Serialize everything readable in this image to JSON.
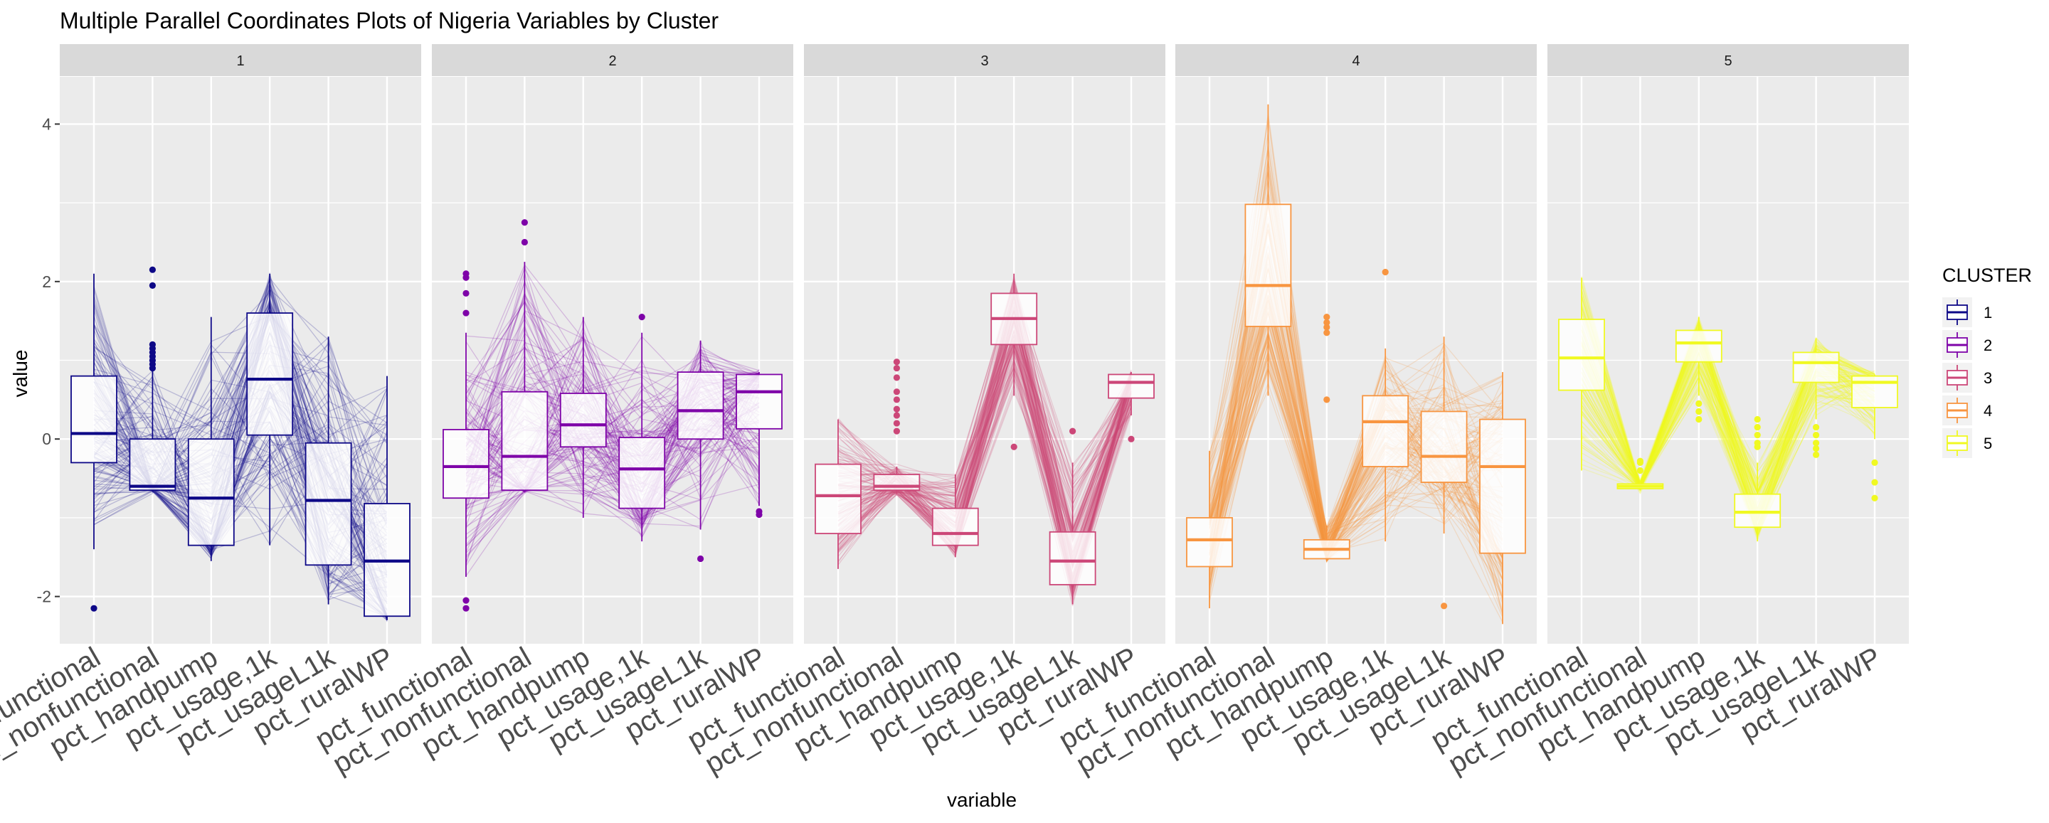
{
  "chart_data": {
    "type": "parallel_coordinates_boxplot",
    "title": "Multiple Parallel Coordinates Plots of Nigeria Variables by Cluster",
    "xlabel": "variable",
    "ylabel": "value",
    "ylim": [
      -2.6,
      4.6
    ],
    "y_ticks": [
      -2,
      0,
      2,
      4
    ],
    "variables": [
      "pct_functional",
      "pct_nonfunctional",
      "pct_handpump",
      "pct_usage,1k",
      "pct_usageL1k",
      "pct_ruralWP"
    ],
    "grid": true,
    "legend": {
      "title": "CLUSTER",
      "position": "right",
      "entries": [
        "1",
        "2",
        "3",
        "4",
        "5"
      ]
    },
    "colors": {
      "1": "#0d0887",
      "2": "#7e03a8",
      "3": "#cc4778",
      "4": "#f89540",
      "5": "#f0f921"
    },
    "panels": [
      {
        "cluster": "1",
        "boxes": [
          {
            "q1": -0.3,
            "median": 0.07,
            "q3": 0.8,
            "wlo": -1.4,
            "whi": 2.1
          },
          {
            "q1": -0.65,
            "median": -0.6,
            "q3": 0.0,
            "wlo": -0.65,
            "whi": 0.9
          },
          {
            "q1": -1.35,
            "median": -0.75,
            "q3": 0.0,
            "wlo": -1.55,
            "whi": 1.55
          },
          {
            "q1": 0.05,
            "median": 0.76,
            "q3": 1.6,
            "wlo": -1.35,
            "whi": 2.1
          },
          {
            "q1": -1.6,
            "median": -0.78,
            "q3": -0.05,
            "wlo": -2.1,
            "whi": 1.3
          },
          {
            "q1": -2.25,
            "median": -1.55,
            "q3": -0.82,
            "wlo": -2.3,
            "whi": 0.8
          }
        ],
        "outliers": [
          [
            -2.15
          ],
          [
            2.15,
            1.95,
            1.2,
            1.15,
            1.1,
            1.05,
            1.0,
            0.95,
            0.9
          ],
          [],
          [],
          [],
          []
        ]
      },
      {
        "cluster": "2",
        "boxes": [
          {
            "q1": -0.75,
            "median": -0.35,
            "q3": 0.12,
            "wlo": -1.75,
            "whi": 1.35
          },
          {
            "q1": -0.65,
            "median": -0.22,
            "q3": 0.6,
            "wlo": -0.65,
            "whi": 2.25
          },
          {
            "q1": -0.1,
            "median": 0.18,
            "q3": 0.58,
            "wlo": -1.0,
            "whi": 1.55
          },
          {
            "q1": -0.88,
            "median": -0.38,
            "q3": 0.02,
            "wlo": -1.3,
            "whi": 1.35
          },
          {
            "q1": 0.0,
            "median": 0.36,
            "q3": 0.85,
            "wlo": -1.15,
            "whi": 1.25
          },
          {
            "q1": 0.13,
            "median": 0.6,
            "q3": 0.82,
            "wlo": -0.85,
            "whi": 0.85
          }
        ],
        "outliers": [
          [
            2.1,
            2.05,
            1.85,
            1.6,
            -2.05,
            -2.15
          ],
          [
            2.75,
            2.5
          ],
          [],
          [
            1.55
          ],
          [
            -1.52
          ],
          [
            -0.92,
            -0.96
          ]
        ]
      },
      {
        "cluster": "3",
        "boxes": [
          {
            "q1": -1.2,
            "median": -0.72,
            "q3": -0.32,
            "wlo": -1.65,
            "whi": 0.25
          },
          {
            "q1": -0.65,
            "median": -0.6,
            "q3": -0.45,
            "wlo": -0.7,
            "whi": -0.35
          },
          {
            "q1": -1.35,
            "median": -1.2,
            "q3": -0.88,
            "wlo": -1.5,
            "whi": -0.45
          },
          {
            "q1": 1.2,
            "median": 1.53,
            "q3": 1.85,
            "wlo": 0.55,
            "whi": 2.1
          },
          {
            "q1": -1.85,
            "median": -1.55,
            "q3": -1.18,
            "wlo": -2.1,
            "whi": -0.3
          },
          {
            "q1": 0.52,
            "median": 0.72,
            "q3": 0.82,
            "wlo": 0.3,
            "whi": 0.85
          }
        ],
        "outliers": [
          [],
          [
            0.98,
            0.9,
            0.78,
            0.6,
            0.5,
            0.38,
            0.3,
            0.2,
            0.1
          ],
          [],
          [
            -0.1
          ],
          [
            0.1
          ],
          [
            0.0
          ]
        ]
      },
      {
        "cluster": "4",
        "boxes": [
          {
            "q1": -1.62,
            "median": -1.28,
            "q3": -1.0,
            "wlo": -2.15,
            "whi": -0.15
          },
          {
            "q1": 1.43,
            "median": 1.95,
            "q3": 2.98,
            "wlo": 0.55,
            "whi": 4.25
          },
          {
            "q1": -1.52,
            "median": -1.4,
            "q3": -1.28,
            "wlo": -1.55,
            "whi": -1.1
          },
          {
            "q1": -0.35,
            "median": 0.22,
            "q3": 0.55,
            "wlo": -1.3,
            "whi": 1.15
          },
          {
            "q1": -0.55,
            "median": -0.22,
            "q3": 0.35,
            "wlo": -1.2,
            "whi": 1.3
          },
          {
            "q1": -1.45,
            "median": -0.35,
            "q3": 0.25,
            "wlo": -2.35,
            "whi": 0.85
          }
        ],
        "outliers": [
          [],
          [],
          [
            1.55,
            1.48,
            1.42,
            1.35,
            0.5
          ],
          [
            2.12
          ],
          [
            -2.12
          ],
          []
        ]
      },
      {
        "cluster": "5",
        "boxes": [
          {
            "q1": 0.62,
            "median": 1.03,
            "q3": 1.52,
            "wlo": -0.4,
            "whi": 2.05
          },
          {
            "q1": -0.63,
            "median": -0.6,
            "q3": -0.57,
            "wlo": -0.63,
            "whi": -0.55
          },
          {
            "q1": 0.98,
            "median": 1.22,
            "q3": 1.38,
            "wlo": 0.55,
            "whi": 1.55
          },
          {
            "q1": -1.12,
            "median": -0.93,
            "q3": -0.7,
            "wlo": -1.3,
            "whi": -0.3
          },
          {
            "q1": 0.72,
            "median": 0.97,
            "q3": 1.1,
            "wlo": 0.25,
            "whi": 1.28
          },
          {
            "q1": 0.4,
            "median": 0.72,
            "q3": 0.8,
            "wlo": 0.0,
            "whi": 0.82
          }
        ],
        "outliers": [
          [],
          [
            -0.28,
            -0.3,
            -0.4
          ],
          [
            0.45,
            0.35,
            0.25
          ],
          [
            0.25,
            0.15,
            0.05,
            -0.05,
            -0.1
          ],
          [
            0.15,
            0.05,
            -0.05,
            -0.12,
            -0.2
          ],
          [
            -0.3,
            -0.55,
            -0.75
          ]
        ]
      }
    ]
  }
}
